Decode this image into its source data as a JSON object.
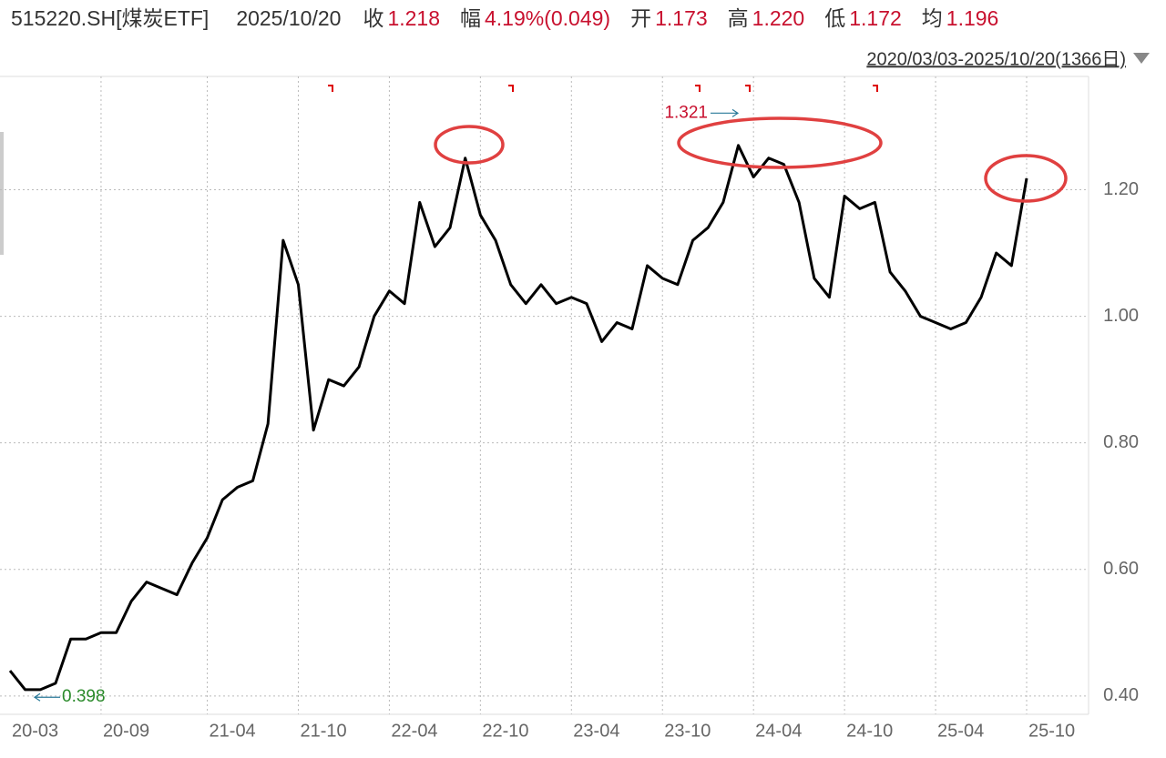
{
  "header": {
    "symbol": "515220.SH[煤炭ETF]",
    "date": "2025/10/20",
    "fields": [
      {
        "label": "收",
        "value": "1.218"
      },
      {
        "label": "幅",
        "value": "4.19%(0.049)"
      },
      {
        "label": "开",
        "value": "1.173"
      },
      {
        "label": "高",
        "value": "1.220"
      },
      {
        "label": "低",
        "value": "1.172"
      },
      {
        "label": "均",
        "value": "1.196"
      }
    ],
    "range": "2020/03/03-2025/10/20(1366日)"
  },
  "chart_data": {
    "type": "line",
    "color": "#000000",
    "categories": [
      "20-03",
      null,
      null,
      null,
      null,
      null,
      "20-09",
      null,
      null,
      null,
      null,
      null,
      null,
      "21-04",
      null,
      null,
      null,
      null,
      null,
      "21-10",
      null,
      null,
      null,
      null,
      null,
      "22-04",
      null,
      null,
      null,
      null,
      null,
      "22-10",
      null,
      null,
      null,
      null,
      null,
      "23-04",
      null,
      null,
      null,
      null,
      null,
      "23-10",
      null,
      null,
      null,
      null,
      null,
      "24-04",
      null,
      null,
      null,
      null,
      null,
      "24-10",
      null,
      null,
      null,
      null,
      null,
      "25-04",
      null,
      null,
      null,
      null,
      null,
      "25-10"
    ],
    "values": [
      0.44,
      0.41,
      0.41,
      0.42,
      0.49,
      0.49,
      0.5,
      0.5,
      0.55,
      0.58,
      0.57,
      0.56,
      0.61,
      0.65,
      0.71,
      0.73,
      0.74,
      0.83,
      1.12,
      1.05,
      0.82,
      0.9,
      0.89,
      0.92,
      1.0,
      1.04,
      1.02,
      1.18,
      1.11,
      1.14,
      1.25,
      1.16,
      1.12,
      1.05,
      1.02,
      1.05,
      1.02,
      1.03,
      1.02,
      0.96,
      0.99,
      0.98,
      1.08,
      1.06,
      1.05,
      1.12,
      1.14,
      1.18,
      1.27,
      1.22,
      1.25,
      1.24,
      1.18,
      1.06,
      1.03,
      1.19,
      1.17,
      1.18,
      1.07,
      1.04,
      1.0,
      0.99,
      0.98,
      0.99,
      1.03,
      1.1,
      1.08,
      1.218
    ],
    "ylim": [
      0.371,
      1.379
    ],
    "yticks": [
      {
        "value": 0.4,
        "label": "0.40"
      },
      {
        "value": 0.6,
        "label": "0.60"
      },
      {
        "value": 0.8,
        "label": "0.80"
      },
      {
        "value": 1.0,
        "label": "1.00"
      },
      {
        "value": 1.2,
        "label": "1.20"
      }
    ],
    "grid": true,
    "max_label": 1.321,
    "min_label": 0.398
  }
}
